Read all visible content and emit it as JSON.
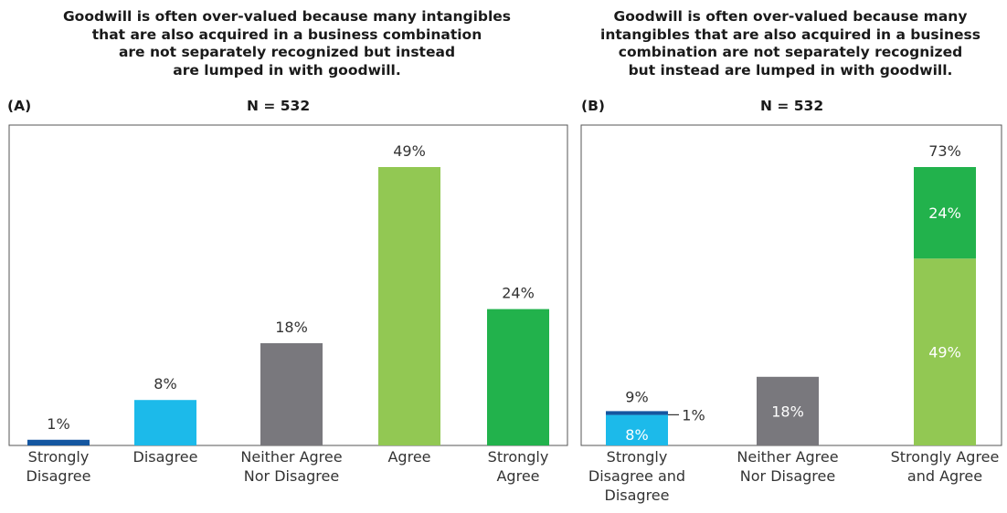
{
  "colors": {
    "strongly_disagree": "#1456a0",
    "disagree": "#1cbaea",
    "neither": "#79787d",
    "agree": "#92c853",
    "strongly_agree": "#22b24c",
    "text": "#333333",
    "frame": "#555555"
  },
  "chart_data": [
    {
      "id": "A",
      "type": "bar",
      "panel_label": "(A)",
      "title": [
        "Goodwill is often over-valued because many intangibles",
        "that are also acquired in a business combination",
        "are not separately recognized but instead",
        "are lumped in with goodwill."
      ],
      "subtitle": "N = 532",
      "categories": [
        [
          "Strongly",
          "Disagree"
        ],
        [
          "Disagree"
        ],
        [
          "Neither Agree",
          "Nor Disagree"
        ],
        [
          "Agree"
        ],
        [
          "Strongly",
          "Agree"
        ]
      ],
      "values": [
        1,
        8,
        18,
        49,
        24
      ],
      "labels": [
        "1%",
        "8%",
        "18%",
        "49%",
        "24%"
      ],
      "colors": [
        "#1456a0",
        "#1cbaea",
        "#79787d",
        "#92c853",
        "#22b24c"
      ],
      "ylim": [
        0,
        60
      ],
      "grid": false,
      "legend": "none"
    },
    {
      "id": "B",
      "type": "bar",
      "stacked": true,
      "panel_label": "(B)",
      "title": [
        "Goodwill is often over-valued because many",
        "intangibles that are also  acquired in a business",
        "combination are not separately recognized",
        "but instead are lumped in with goodwill."
      ],
      "subtitle": "N = 532",
      "categories": [
        [
          "Strongly",
          "Disagree and",
          "Disagree"
        ],
        [
          "Neither Agree",
          "Nor Disagree"
        ],
        [
          "Strongly Agree",
          "and Agree"
        ]
      ],
      "series": [
        {
          "values": [
            8,
            18,
            49
          ],
          "labels": [
            "8%",
            "18%",
            "49%"
          ],
          "colors": [
            "#1cbaea",
            "#79787d",
            "#92c853"
          ]
        },
        {
          "values": [
            1,
            0,
            24
          ],
          "labels": [
            "1%",
            "",
            "24%"
          ],
          "colors": [
            "#1456a0",
            "#79787d",
            "#22b24c"
          ]
        }
      ],
      "totals": [
        9,
        18,
        73
      ],
      "total_labels": [
        "9%",
        "",
        "73%"
      ],
      "ylim": [
        0,
        90
      ],
      "grid": false,
      "legend": "none"
    }
  ]
}
